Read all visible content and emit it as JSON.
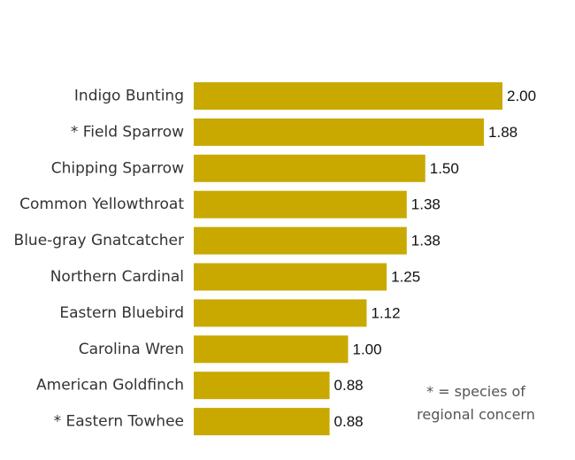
{
  "chart_data": {
    "type": "bar",
    "orientation": "horizontal",
    "categories": [
      "Indigo Bunting",
      "* Field Sparrow",
      "Chipping Sparrow",
      "Common Yellowthroat",
      "Blue-gray Gnatcatcher",
      "Northern Cardinal",
      "Eastern Bluebird",
      "Carolina Wren",
      "American Goldfinch",
      "* Eastern Towhee"
    ],
    "values": [
      2.0,
      1.88,
      1.5,
      1.38,
      1.38,
      1.25,
      1.12,
      1.0,
      0.88,
      0.88
    ],
    "value_labels": [
      "2.00",
      "1.88",
      "1.50",
      "1.38",
      "1.38",
      "1.25",
      "1.12",
      "1.00",
      "0.88",
      "0.88"
    ],
    "bar_color": "#C9A900",
    "xlim": [
      0,
      2.0
    ],
    "grid": false,
    "annotation": {
      "line1": "* = species of",
      "line2": "regional concern"
    }
  }
}
